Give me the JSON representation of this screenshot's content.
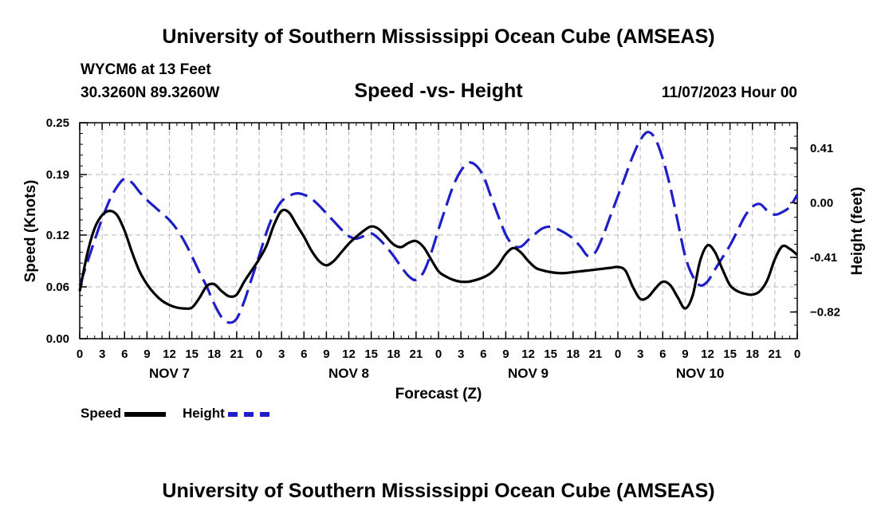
{
  "header": {
    "title": "University of Southern Mississippi Ocean Cube (AMSEAS)",
    "station": "WYCM6 at 13 Feet",
    "coords": "30.3260N  89.3260W",
    "date": "11/07/2023 Hour 00"
  },
  "footer": {
    "title": "University of Southern Mississippi Ocean Cube (AMSEAS)"
  },
  "chart_data": {
    "type": "line",
    "title": "Speed -vs- Height",
    "xlabel": "Forecast (Z)",
    "ylabel_left": "Speed (Knots)",
    "ylabel_right": "Height (feet)",
    "x_range": [
      0,
      96
    ],
    "x_tick_labels": [
      "0",
      "3",
      "6",
      "9",
      "12",
      "15",
      "18",
      "21",
      "0",
      "3",
      "6",
      "9",
      "12",
      "15",
      "18",
      "21",
      "0",
      "3",
      "6",
      "9",
      "12",
      "15",
      "18",
      "21",
      "0",
      "3",
      "6",
      "9",
      "12",
      "15",
      "18",
      "21",
      "0"
    ],
    "day_labels": [
      {
        "label": "NOV 7",
        "hour": 12
      },
      {
        "label": "NOV 8",
        "hour": 36
      },
      {
        "label": "NOV 9",
        "hour": 60
      },
      {
        "label": "NOV 10",
        "hour": 83
      }
    ],
    "left_axis": {
      "range": [
        0,
        0.25
      ],
      "ticks": [
        0.0,
        0.06,
        0.12,
        0.19,
        0.25
      ],
      "tick_labels": [
        "0.00",
        "0.06",
        "0.12",
        "0.19",
        "0.25"
      ]
    },
    "right_axis": {
      "range": [
        -1.02,
        0.6
      ],
      "ticks": [
        -0.82,
        -0.41,
        0.0,
        0.41
      ],
      "tick_labels": [
        "−0.82",
        "-0.41",
        "0.00",
        "0.41"
      ]
    },
    "grid": true,
    "series": [
      {
        "name": "Speed",
        "axis": "left",
        "color": "#000000",
        "style": "solid",
        "x": [
          0,
          1,
          2,
          3,
          4,
          5,
          6,
          7,
          8,
          9,
          10,
          11,
          12,
          13,
          14,
          15,
          16,
          17,
          18,
          19,
          20,
          21,
          22,
          23,
          24,
          25,
          26,
          27,
          28,
          29,
          30,
          31,
          32,
          33,
          34,
          35,
          36,
          37,
          38,
          39,
          40,
          41,
          42,
          43,
          44,
          45,
          46,
          47,
          48,
          49,
          50,
          51,
          52,
          53,
          54,
          55,
          56,
          57,
          58,
          59,
          60,
          61,
          62,
          63,
          64,
          65,
          66,
          67,
          68,
          69,
          70,
          71,
          72,
          73,
          74,
          75,
          76,
          77,
          78,
          79,
          80,
          81,
          82,
          83,
          84,
          85,
          86,
          87,
          88,
          89,
          90,
          91,
          92,
          93,
          94,
          95,
          96
        ],
        "values": [
          0.055,
          0.098,
          0.128,
          0.143,
          0.148,
          0.143,
          0.125,
          0.1,
          0.078,
          0.063,
          0.052,
          0.044,
          0.039,
          0.036,
          0.035,
          0.036,
          0.047,
          0.061,
          0.063,
          0.055,
          0.049,
          0.051,
          0.066,
          0.079,
          0.092,
          0.108,
          0.132,
          0.148,
          0.146,
          0.132,
          0.118,
          0.102,
          0.09,
          0.085,
          0.09,
          0.1,
          0.11,
          0.118,
          0.125,
          0.13,
          0.127,
          0.118,
          0.109,
          0.106,
          0.111,
          0.113,
          0.106,
          0.092,
          0.078,
          0.072,
          0.068,
          0.066,
          0.066,
          0.068,
          0.071,
          0.076,
          0.085,
          0.098,
          0.105,
          0.1,
          0.09,
          0.082,
          0.079,
          0.077,
          0.076,
          0.076,
          0.077,
          0.078,
          0.079,
          0.08,
          0.081,
          0.082,
          0.083,
          0.079,
          0.06,
          0.046,
          0.048,
          0.058,
          0.066,
          0.062,
          0.048,
          0.035,
          0.05,
          0.09,
          0.108,
          0.1,
          0.08,
          0.062,
          0.055,
          0.052,
          0.051,
          0.055,
          0.068,
          0.092,
          0.107,
          0.104,
          0.097
        ]
      },
      {
        "name": "Height",
        "axis": "right",
        "color": "#1f1fc8",
        "style": "dashed",
        "x": [
          0,
          1,
          2,
          3,
          4,
          5,
          6,
          7,
          8,
          9,
          10,
          11,
          12,
          13,
          14,
          15,
          16,
          17,
          18,
          19,
          20,
          21,
          22,
          23,
          24,
          25,
          26,
          27,
          28,
          29,
          30,
          31,
          32,
          33,
          34,
          35,
          36,
          37,
          38,
          39,
          40,
          41,
          42,
          43,
          44,
          45,
          46,
          47,
          48,
          49,
          50,
          51,
          52,
          53,
          54,
          55,
          56,
          57,
          58,
          59,
          60,
          61,
          62,
          63,
          64,
          65,
          66,
          67,
          68,
          69,
          70,
          71,
          72,
          73,
          74,
          75,
          76,
          77,
          78,
          79,
          80,
          81,
          82,
          83,
          84,
          85,
          86,
          87,
          88,
          89,
          90,
          91,
          92,
          93,
          94,
          95,
          96
        ],
        "values": [
          -0.62,
          -0.45,
          -0.28,
          -0.12,
          0.02,
          0.12,
          0.18,
          0.15,
          0.08,
          0.02,
          -0.03,
          -0.08,
          -0.13,
          -0.2,
          -0.29,
          -0.4,
          -0.52,
          -0.63,
          -0.76,
          -0.86,
          -0.9,
          -0.87,
          -0.74,
          -0.57,
          -0.4,
          -0.22,
          -0.08,
          0.01,
          0.05,
          0.07,
          0.06,
          0.03,
          -0.02,
          -0.08,
          -0.14,
          -0.2,
          -0.25,
          -0.27,
          -0.25,
          -0.23,
          -0.27,
          -0.33,
          -0.4,
          -0.48,
          -0.55,
          -0.58,
          -0.52,
          -0.38,
          -0.2,
          -0.03,
          0.13,
          0.24,
          0.3,
          0.28,
          0.2,
          0.05,
          -0.1,
          -0.24,
          -0.32,
          -0.33,
          -0.28,
          -0.23,
          -0.19,
          -0.18,
          -0.2,
          -0.23,
          -0.27,
          -0.33,
          -0.4,
          -0.37,
          -0.25,
          -0.1,
          0.05,
          0.2,
          0.35,
          0.47,
          0.53,
          0.48,
          0.33,
          0.12,
          -0.14,
          -0.4,
          -0.55,
          -0.62,
          -0.59,
          -0.5,
          -0.41,
          -0.32,
          -0.21,
          -0.1,
          -0.03,
          -0.01,
          -0.06,
          -0.09,
          -0.07,
          -0.03,
          0.06
        ]
      }
    ],
    "legend": [
      {
        "label": "Speed",
        "color": "#000000",
        "style": "solid"
      },
      {
        "label": "Height",
        "color": "#1f1fc8",
        "style": "dashed"
      }
    ]
  }
}
